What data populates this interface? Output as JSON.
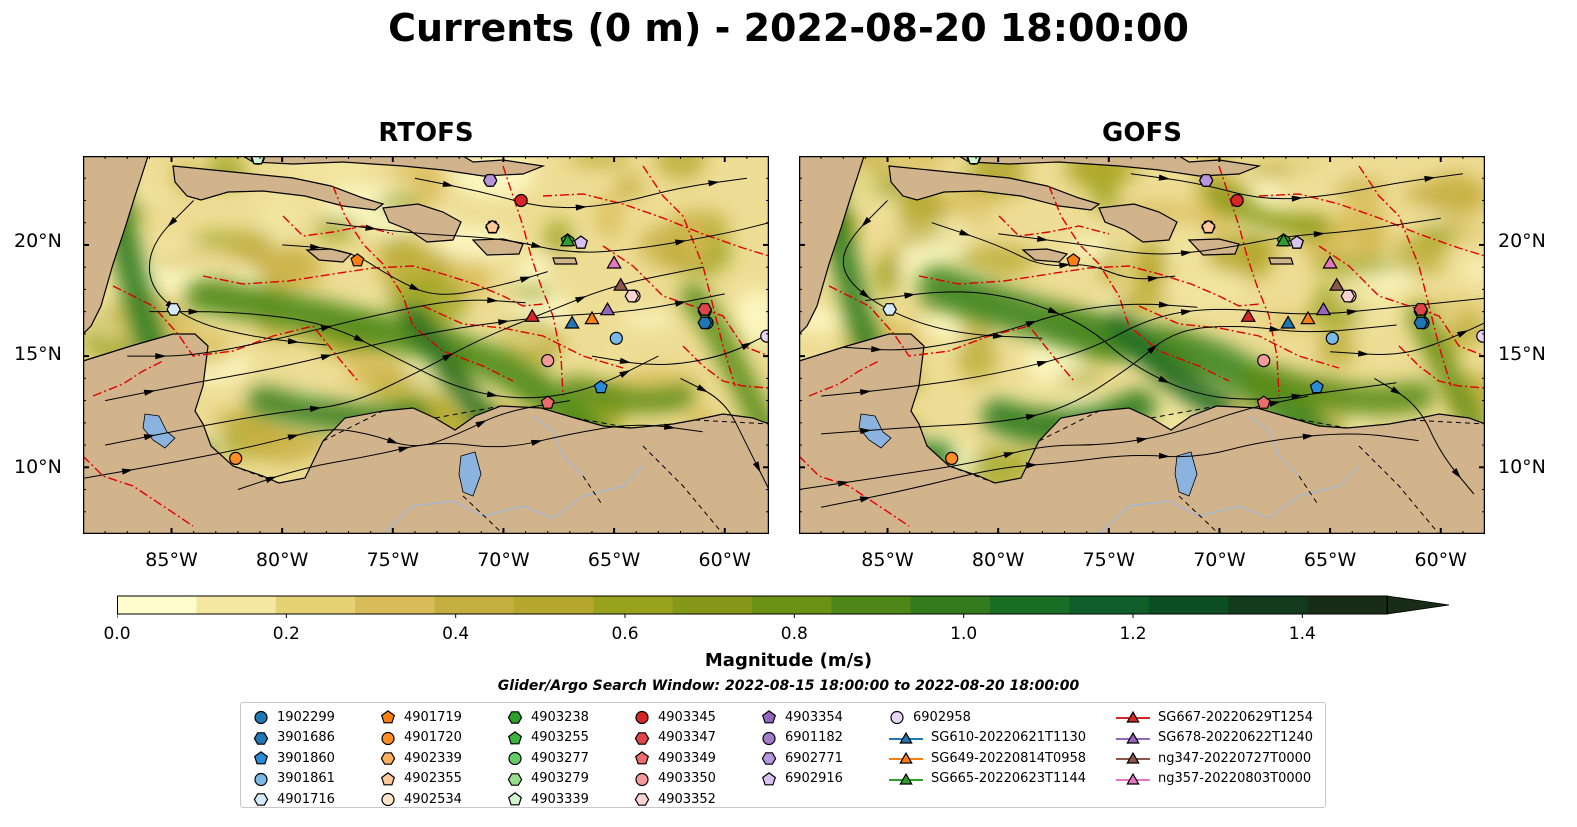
{
  "title": "Currents (0 m) - 2022-08-20 18:00:00",
  "panels": [
    {
      "title": "RTOFS"
    },
    {
      "title": "GOFS"
    }
  ],
  "lat_labels": [
    "20°N",
    "15°N",
    "10°N"
  ],
  "lon_labels": [
    "85°W",
    "80°W",
    "75°W",
    "70°W",
    "65°W",
    "60°W"
  ],
  "colorbar": {
    "label": "Magnitude (m/s)",
    "ticks": [
      "0.0",
      "0.2",
      "0.4",
      "0.6",
      "0.8",
      "1.0",
      "1.2",
      "1.4"
    ],
    "colors": [
      "#fffdcd",
      "#f3e7a1",
      "#e6d275",
      "#d9bc5a",
      "#c5ae40",
      "#b6a82e",
      "#99a21c",
      "#86981a",
      "#6b9115",
      "#4f8618",
      "#327a1c",
      "#1a6d25",
      "#0f5e29",
      "#0d4e25",
      "#123b1e",
      "#182c17"
    ],
    "extend": "max"
  },
  "search_window": "Glider/Argo Search Window: 2022-08-15 18:00:00 to 2022-08-20 18:00:00",
  "colors": {
    "land": "#d2b48c",
    "lakes": "#8bb3df",
    "eez_boundary": "#e00000"
  },
  "chart_data": {
    "type": "heatmap",
    "variable": "Currents (0 m) magnitude",
    "units": "m/s",
    "vmin": 0.0,
    "vmax": 1.5,
    "lon_range": [
      -89,
      -58
    ],
    "lat_range": [
      7,
      24
    ],
    "panels": [
      "RTOFS",
      "GOFS"
    ],
    "floats": [
      {
        "id": "1902299",
        "lon": -60.8,
        "lat": 16.5,
        "rtofs": [
          -60.8,
          16.5
        ],
        "gofs": [
          -60.9,
          16.5
        ]
      },
      {
        "id": "3901686",
        "lon": -60.9,
        "lat": 16.5
      },
      {
        "id": "3901860",
        "lon": -65.6,
        "lat": 13.6
      },
      {
        "id": "3901861",
        "lon": -64.9,
        "lat": 15.8
      },
      {
        "id": "4901716",
        "lon": -84.9,
        "lat": 17.1
      },
      {
        "id": "4901719",
        "lon": -76.6,
        "lat": 19.3
      },
      {
        "id": "4901720",
        "lon": -82.1,
        "lat": 10.4
      },
      {
        "id": "4902339",
        "lon": -70.5,
        "lat": 20.8
      },
      {
        "id": "4902355",
        "lon": -70.5,
        "lat": 20.8
      },
      {
        "id": "4902534",
        "lon": -64.1,
        "lat": 17.7
      },
      {
        "id": "4903238",
        "lon": -60.9,
        "lat": 17.0
      },
      {
        "id": "4903255",
        "lon": -67.1,
        "lat": 20.2
      },
      {
        "id": "4903277",
        "lon": -81.1,
        "lat": 23.9
      },
      {
        "id": "4903279",
        "lon": -81.1,
        "lat": 23.9
      },
      {
        "id": "4903339",
        "lon": -81.1,
        "lat": 23.9
      },
      {
        "id": "4903345",
        "lon": -69.2,
        "lat": 22.0
      },
      {
        "id": "4903347",
        "lon": -60.9,
        "lat": 17.1
      },
      {
        "id": "4903349",
        "lon": -68.0,
        "lat": 12.9
      },
      {
        "id": "4903350",
        "lon": -68.0,
        "lat": 14.8
      },
      {
        "id": "4903352",
        "lon": -64.2,
        "lat": 17.7
      },
      {
        "id": "4903354",
        "lon": -66.5,
        "lat": 20.1
      },
      {
        "id": "6901182",
        "lon": -70.6,
        "lat": 22.9
      },
      {
        "id": "6902771",
        "lon": -70.6,
        "lat": 22.9
      },
      {
        "id": "6902916",
        "lon": -66.5,
        "lat": 20.1
      },
      {
        "id": "6902958",
        "lon": -58.1,
        "lat": 15.9
      }
    ],
    "gliders": [
      {
        "id": "SG610-20220621T1130",
        "lon": -66.9,
        "lat": 16.5
      },
      {
        "id": "SG649-20220814T0958",
        "lon": -66.0,
        "lat": 16.7
      },
      {
        "id": "SG665-20220623T1144",
        "lon": -67.1,
        "lat": 20.2
      },
      {
        "id": "SG667-20220629T1254",
        "lon": -68.7,
        "lat": 16.8
      },
      {
        "id": "SG678-20220622T1240",
        "lon": -65.3,
        "lat": 17.1
      },
      {
        "id": "ng347-20220727T0000",
        "lon": -64.7,
        "lat": 18.2
      },
      {
        "id": "ng357-20220803T0000",
        "lon": -65.0,
        "lat": 19.2
      }
    ]
  },
  "legend": {
    "columns": [
      [
        {
          "label": "1902299",
          "marker": "circle",
          "color": "#1f77b4"
        },
        {
          "label": "3901686",
          "marker": "hexagon",
          "color": "#1f77b4"
        },
        {
          "label": "3901860",
          "marker": "pentagon",
          "color": "#2a8bd6"
        },
        {
          "label": "3901861",
          "marker": "circle",
          "color": "#7ab8e8"
        },
        {
          "label": "4901716",
          "marker": "hexagon",
          "color": "#d7eaf8"
        }
      ],
      [
        {
          "label": "4901719",
          "marker": "pentagon",
          "color": "#ff7f0e"
        },
        {
          "label": "4901720",
          "marker": "circle",
          "color": "#ff8c26"
        },
        {
          "label": "4902339",
          "marker": "hexagon",
          "color": "#ffae62"
        },
        {
          "label": "4902355",
          "marker": "pentagon",
          "color": "#ffc99a"
        },
        {
          "label": "4902534",
          "marker": "circle",
          "color": "#ffe4cc"
        }
      ],
      [
        {
          "label": "4903238",
          "marker": "hexagon",
          "color": "#2ca02c"
        },
        {
          "label": "4903255",
          "marker": "pentagon",
          "color": "#3cb43c"
        },
        {
          "label": "4903277",
          "marker": "circle",
          "color": "#66cc66"
        },
        {
          "label": "4903279",
          "marker": "hexagon",
          "color": "#98df8a"
        },
        {
          "label": "4903339",
          "marker": "pentagon",
          "color": "#d2f5d0"
        }
      ],
      [
        {
          "label": "4903345",
          "marker": "circle",
          "color": "#d62728"
        },
        {
          "label": "4903347",
          "marker": "hexagon",
          "color": "#e04547"
        },
        {
          "label": "4903349",
          "marker": "pentagon",
          "color": "#ec6b6b"
        },
        {
          "label": "4903350",
          "marker": "circle",
          "color": "#f59a9a"
        },
        {
          "label": "4903352",
          "marker": "hexagon",
          "color": "#fcd3d3"
        }
      ],
      [
        {
          "label": "4903354",
          "marker": "pentagon",
          "color": "#9467bd"
        },
        {
          "label": "6901182",
          "marker": "circle",
          "color": "#a37ccb"
        },
        {
          "label": "6902771",
          "marker": "hexagon",
          "color": "#b896dd"
        },
        {
          "label": "6902916",
          "marker": "pentagon",
          "color": "#d7c2f0"
        }
      ],
      [
        {
          "label": "6902958",
          "marker": "circle",
          "color": "#e9d6f7"
        },
        {
          "label": "SG610-20220621T1130",
          "marker": "triangle",
          "color": "#1f77b4"
        },
        {
          "label": "SG649-20220814T0958",
          "marker": "triangle",
          "color": "#ff7f0e"
        },
        {
          "label": "SG665-20220623T1144",
          "marker": "triangle",
          "color": "#2ca02c"
        }
      ],
      [
        {
          "label": "SG667-20220629T1254",
          "marker": "triangle",
          "color": "#d62728"
        },
        {
          "label": "SG678-20220622T1240",
          "marker": "triangle",
          "color": "#9467bd"
        },
        {
          "label": "ng347-20220727T0000",
          "marker": "triangle",
          "color": "#8c564b"
        },
        {
          "label": "ng357-20220803T0000",
          "marker": "triangle",
          "color": "#e377c2"
        }
      ]
    ]
  }
}
